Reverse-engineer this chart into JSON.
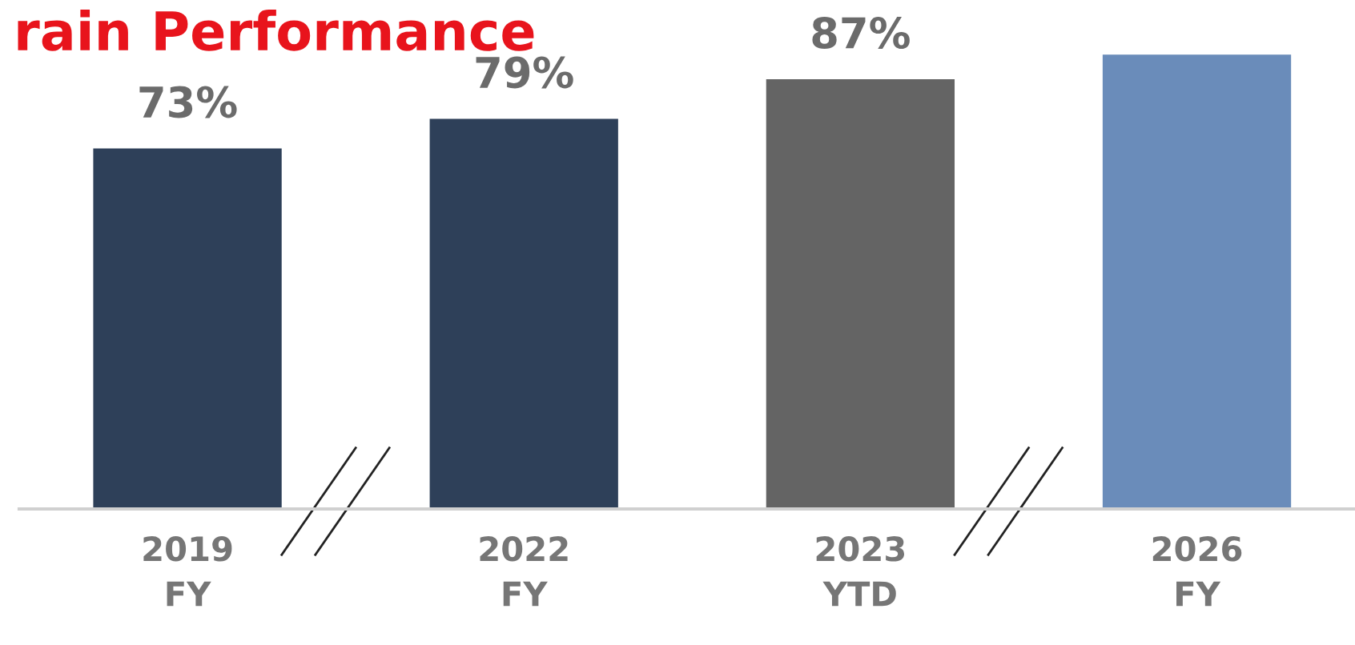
{
  "chart_data": {
    "type": "bar",
    "title": "rain Performance",
    "categories": [
      "2019\nFY",
      "2022\nFY",
      "2023\nYTD",
      "2026\nFY"
    ],
    "values": [
      73,
      79,
      87,
      92
    ],
    "colors": [
      "#2e4059",
      "#2e4059",
      "#646464",
      "#6a8cba"
    ],
    "value_labels": [
      "73%",
      "79%",
      "87%",
      null
    ],
    "tick_labels": "x",
    "grid": false,
    "legend": false
  }
}
